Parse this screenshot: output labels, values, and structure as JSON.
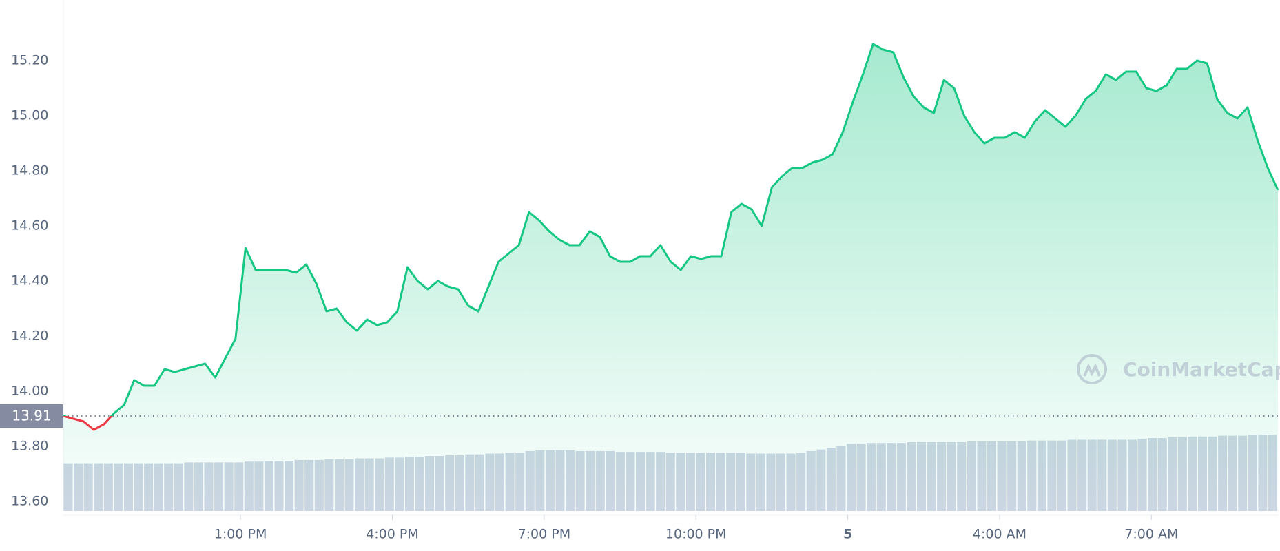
{
  "chart_data": {
    "type": "line",
    "baseline": 13.91,
    "up_color": "#16c784",
    "down_color": "#ea3943",
    "volume_color": "#cfd6e4",
    "watermark": "CoinMarketCap",
    "grid": true,
    "xlim": [
      9.5,
      33.5
    ],
    "xticks": [
      {
        "value": 13,
        "label": "1:00 PM"
      },
      {
        "value": 16,
        "label": "4:00 PM"
      },
      {
        "value": 19,
        "label": "7:00 PM"
      },
      {
        "value": 22,
        "label": "10:00 PM"
      },
      {
        "value": 25,
        "label": "5"
      },
      {
        "value": 28,
        "label": "4:00 AM"
      },
      {
        "value": 31,
        "label": "7:00 AM"
      }
    ],
    "ylim": [
      13.565,
      15.42
    ],
    "yticks": [
      {
        "value": 13.6,
        "label": "13.60"
      },
      {
        "value": 13.8,
        "label": "13.80"
      },
      {
        "value": 14,
        "label": "14.00"
      },
      {
        "value": 14.2,
        "label": "14.20"
      },
      {
        "value": 14.4,
        "label": "14.40"
      },
      {
        "value": 14.6,
        "label": "14.60"
      },
      {
        "value": 14.8,
        "label": "14.80"
      },
      {
        "value": 15,
        "label": "15.00"
      },
      {
        "value": 15.2,
        "label": "15.20"
      }
    ],
    "x": [
      9.5,
      9.7,
      9.9,
      10.1,
      10.3,
      10.5,
      10.7,
      10.9,
      11.1,
      11.3,
      11.5,
      11.7,
      11.9,
      12.1,
      12.3,
      12.5,
      12.7,
      12.9,
      13.1,
      13.3,
      13.5,
      13.7,
      13.9,
      14.1,
      14.3,
      14.5,
      14.7,
      14.9,
      15.1,
      15.3,
      15.5,
      15.7,
      15.9,
      16.1,
      16.3,
      16.5,
      16.7,
      16.9,
      17.1,
      17.3,
      17.5,
      17.7,
      17.9,
      18.1,
      18.3,
      18.5,
      18.7,
      18.9,
      19.1,
      19.3,
      19.5,
      19.7,
      19.9,
      20.1,
      20.3,
      20.5,
      20.7,
      20.9,
      21.1,
      21.3,
      21.5,
      21.7,
      21.9,
      22.1,
      22.3,
      22.5,
      22.7,
      22.9,
      23.1,
      23.3,
      23.5,
      23.7,
      23.9,
      24.1,
      24.3,
      24.5,
      24.7,
      24.9,
      25.1,
      25.3,
      25.5,
      25.7,
      25.9,
      26.1,
      26.3,
      26.5,
      26.7,
      26.9,
      27.1,
      27.3,
      27.5,
      27.7,
      27.9,
      28.1,
      28.3,
      28.5,
      28.7,
      28.9,
      29.1,
      29.3,
      29.5,
      29.7,
      29.9,
      30.1,
      30.3,
      30.5,
      30.7,
      30.9,
      31.1,
      31.3,
      31.5,
      31.7,
      31.9,
      32.1,
      32.3,
      32.5,
      32.7,
      32.9,
      33.1,
      33.3,
      33.5
    ],
    "values": [
      13.91,
      13.9,
      13.89,
      13.86,
      13.88,
      13.92,
      13.95,
      14.04,
      14.02,
      14.02,
      14.08,
      14.07,
      14.08,
      14.09,
      14.1,
      14.05,
      14.12,
      14.19,
      14.52,
      14.44,
      14.44,
      14.44,
      14.44,
      14.43,
      14.46,
      14.39,
      14.29,
      14.3,
      14.25,
      14.22,
      14.26,
      14.24,
      14.25,
      14.29,
      14.45,
      14.4,
      14.37,
      14.4,
      14.38,
      14.37,
      14.31,
      14.29,
      14.38,
      14.47,
      14.5,
      14.53,
      14.65,
      14.62,
      14.58,
      14.55,
      14.53,
      14.53,
      14.58,
      14.56,
      14.49,
      14.47,
      14.47,
      14.49,
      14.49,
      14.53,
      14.47,
      14.44,
      14.49,
      14.48,
      14.49,
      14.49,
      14.65,
      14.68,
      14.66,
      14.6,
      14.74,
      14.78,
      14.81,
      14.81,
      14.83,
      14.84,
      14.86,
      14.94,
      15.05,
      15.15,
      15.26,
      15.24,
      15.23,
      15.14,
      15.07,
      15.03,
      15.01,
      15.13,
      15.1,
      15,
      14.94,
      14.9,
      14.92,
      14.92,
      14.94,
      14.92,
      14.98,
      15.02,
      14.99,
      14.96,
      15,
      15.06,
      15.09,
      15.15,
      15.13,
      15.16,
      15.16,
      15.1,
      15.09,
      15.11,
      15.17,
      15.17,
      15.2,
      15.19,
      15.06,
      15.01,
      14.99,
      15.03,
      14.91,
      14.81,
      14.73
    ],
    "volume": [
      59,
      59,
      59,
      59,
      59,
      59,
      59,
      59,
      59,
      59,
      59,
      59,
      60,
      60,
      60,
      60,
      60,
      60,
      61,
      61,
      62,
      62,
      62,
      63,
      63,
      63,
      64,
      64,
      64,
      65,
      65,
      65,
      66,
      66,
      67,
      67,
      68,
      68,
      69,
      69,
      70,
      70,
      71,
      71,
      72,
      72,
      74,
      75,
      75,
      75,
      75,
      74,
      74,
      74,
      74,
      73,
      73,
      73,
      73,
      73,
      72,
      72,
      72,
      72,
      72,
      72,
      72,
      72,
      71,
      71,
      71,
      71,
      71,
      72,
      74,
      76,
      78,
      80,
      83,
      83,
      84,
      84,
      84,
      84,
      85,
      85,
      85,
      85,
      85,
      85,
      86,
      86,
      86,
      86,
      86,
      86,
      87,
      87,
      87,
      87,
      88,
      88,
      88,
      88,
      88,
      88,
      88,
      89,
      90,
      90,
      91,
      91,
      92,
      92,
      92,
      93,
      93,
      93,
      94,
      94,
      94
    ]
  }
}
